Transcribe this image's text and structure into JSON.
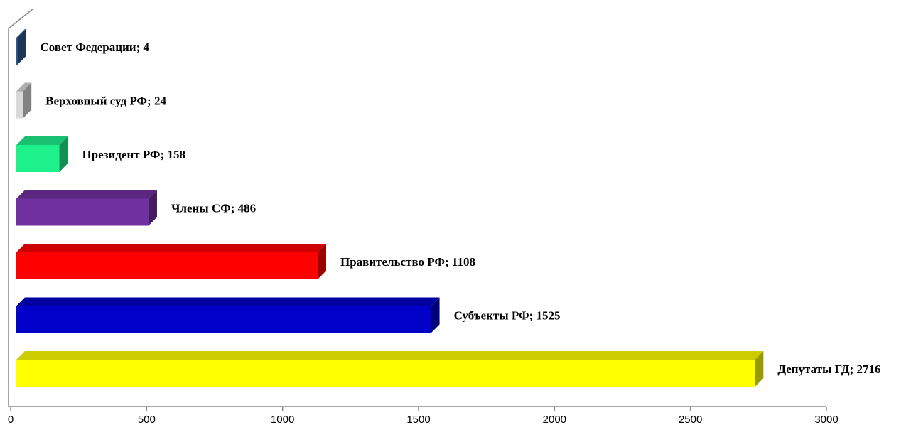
{
  "chart_data": {
    "type": "bar",
    "orientation": "horizontal",
    "values": [
      4,
      24,
      158,
      486,
      1108,
      1525,
      2716
    ],
    "value_labels": [
      "Совет Федерации; 4",
      "Верховный суд РФ; 24",
      "Президент РФ; 158",
      "Члены СФ; 486",
      "Правительство РФ; 1108",
      "Субъекты РФ; 1525",
      "Депутаты ГД; 2716"
    ],
    "colors": [
      "#2e5a8f",
      "#d9d9d9",
      "#1ef08c",
      "#7030a0",
      "#ff0000",
      "#0000c8",
      "#ffff00"
    ],
    "xlim": [
      0,
      3000
    ],
    "xticks": [
      0,
      500,
      1000,
      1500,
      2000,
      2500,
      3000
    ]
  }
}
